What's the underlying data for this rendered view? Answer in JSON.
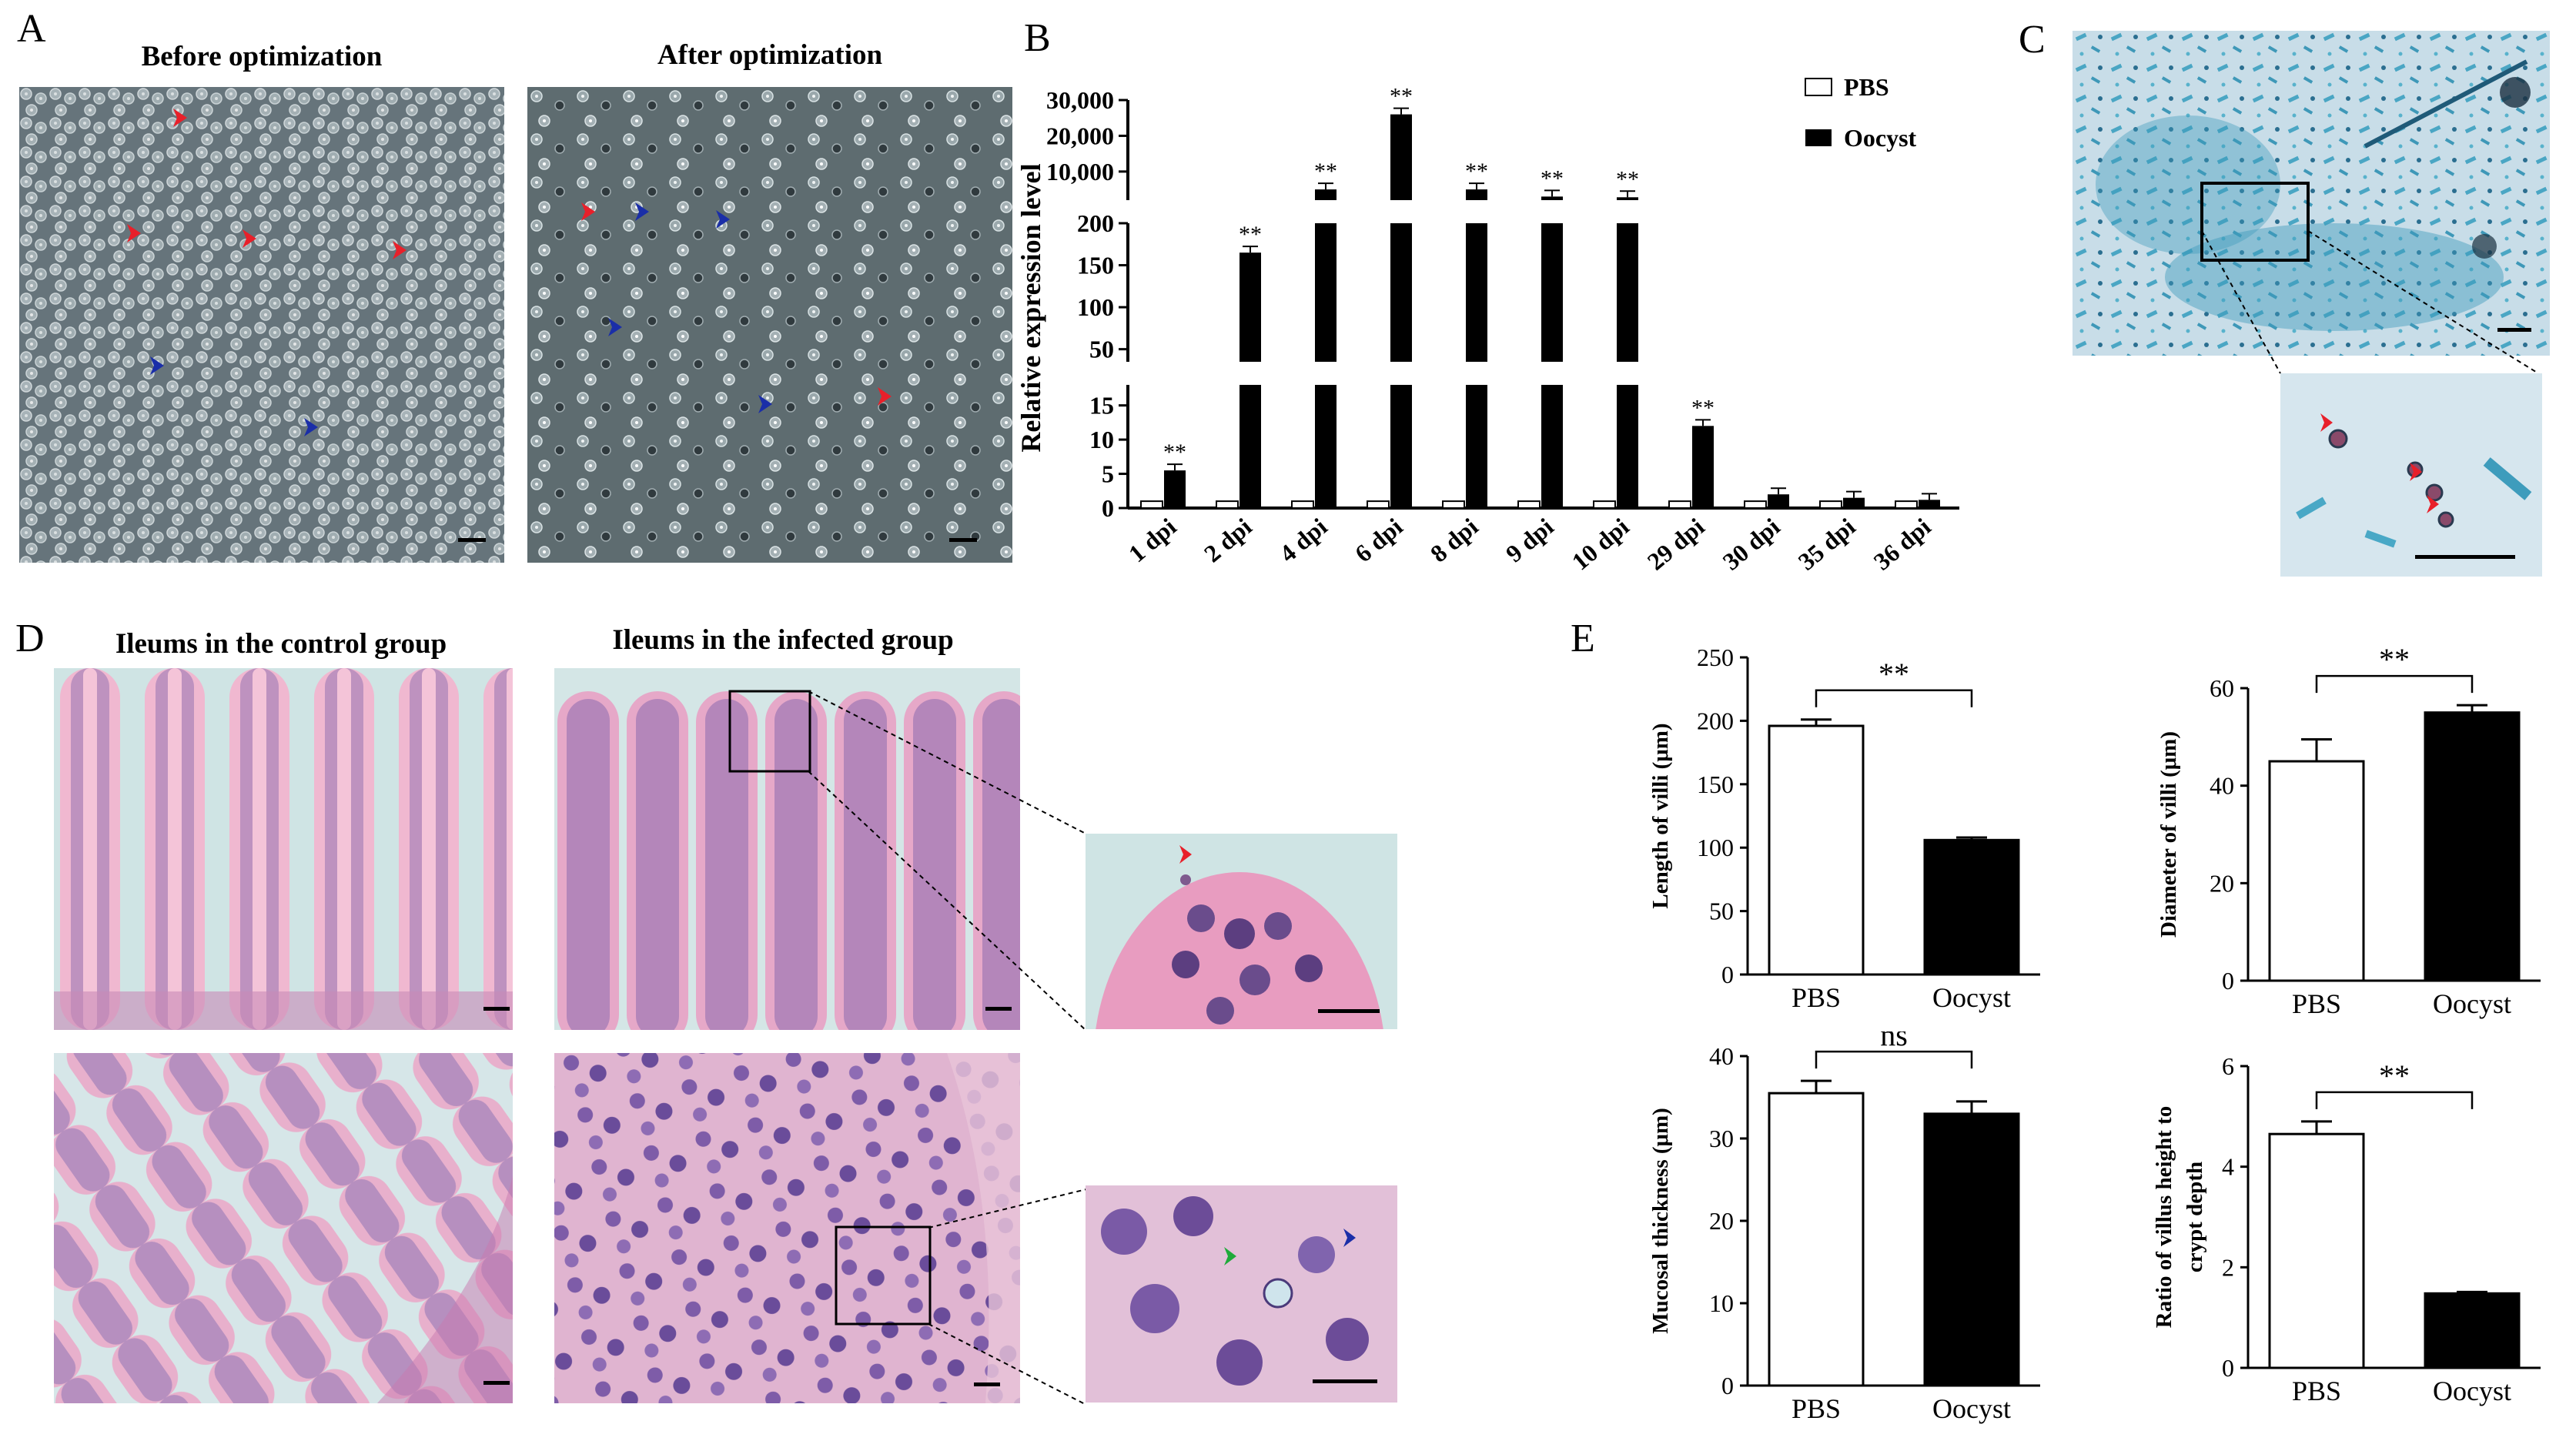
{
  "panels": {
    "A": {
      "letter": "A",
      "left_caption": "Before optimization",
      "right_caption": "After optimization",
      "arrow_colors": {
        "red": "#e8202a",
        "blue": "#1a2ea8"
      }
    },
    "B": {
      "letter": "B"
    },
    "C": {
      "letter": "C"
    },
    "D": {
      "letter": "D",
      "left_caption": "Ileums in the control group",
      "right_caption": "Ileums in the infected group",
      "arrow_colors": {
        "red": "#e8202a",
        "green": "#1faa3a",
        "blue": "#1a2ea8"
      }
    },
    "E": {
      "letter": "E"
    }
  },
  "chart_data": [
    {
      "id": "B",
      "type": "bar",
      "ylabel": "Relative expression level",
      "categories": [
        "1 dpi",
        "2 dpi",
        "4 dpi",
        "6 dpi",
        "8 dpi",
        "9 dpi",
        "10 dpi",
        "29 dpi",
        "30 dpi",
        "35 dpi",
        "36 dpi"
      ],
      "series": [
        {
          "name": "PBS",
          "values": [
            1,
            1,
            1,
            1,
            1,
            1,
            1,
            1,
            1,
            1,
            1
          ],
          "color": "#ffffff"
        },
        {
          "name": "Oocyst",
          "values": [
            5.5,
            165,
            5000,
            26000,
            5000,
            3000,
            2800,
            12,
            2,
            1.5,
            1.2
          ],
          "color": "#000000"
        }
      ],
      "significance": [
        "**",
        "**",
        "**",
        "**",
        "**",
        "**",
        "**",
        "**",
        "",
        "",
        ""
      ],
      "broken_axis": true,
      "y_tick_labels": [
        "0",
        "5",
        "10",
        "15",
        "50",
        "100",
        "150",
        "200",
        "10,000",
        "20,000",
        "30,000"
      ],
      "legend_position": "top-right"
    },
    {
      "id": "E1",
      "type": "bar",
      "ylabel": "Length of villi (μm)",
      "categories": [
        "PBS",
        "Oocyst"
      ],
      "values": [
        196,
        106
      ],
      "errors": [
        5,
        2
      ],
      "ylim": [
        0,
        250
      ],
      "yticks": [
        "0",
        "50",
        "100",
        "150",
        "200",
        "250"
      ],
      "significance": "**"
    },
    {
      "id": "E2",
      "type": "bar",
      "ylabel": "Diameter of villi (μm)",
      "categories": [
        "PBS",
        "Oocyst"
      ],
      "values": [
        45,
        55
      ],
      "errors": [
        4.5,
        1.5
      ],
      "ylim": [
        0,
        60
      ],
      "yticks": [
        "0",
        "20",
        "40",
        "60"
      ],
      "significance": "**"
    },
    {
      "id": "E3",
      "type": "bar",
      "ylabel": "Mucosal thickness (μm)",
      "categories": [
        "PBS",
        "Oocyst"
      ],
      "values": [
        35.5,
        33
      ],
      "errors": [
        1.5,
        1.5
      ],
      "ylim": [
        0,
        40
      ],
      "yticks": [
        "0",
        "10",
        "20",
        "30",
        "40"
      ],
      "significance": "ns"
    },
    {
      "id": "E4",
      "type": "bar",
      "ylabel": "Ratio of villus height to crypt depth",
      "categories": [
        "PBS",
        "Oocyst"
      ],
      "values": [
        4.65,
        1.48
      ],
      "errors": [
        0.25,
        0.03
      ],
      "ylim": [
        0,
        6
      ],
      "yticks": [
        "0",
        "2",
        "4",
        "6"
      ],
      "significance": "**"
    }
  ]
}
